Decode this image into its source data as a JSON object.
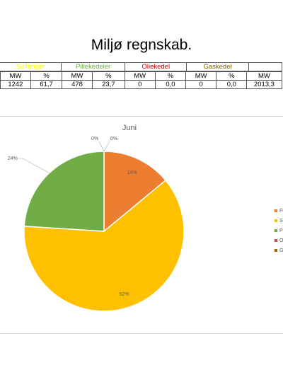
{
  "page_title": "Miljø regnskab.",
  "table": {
    "groups": [
      {
        "label": "Solfanger",
        "color": "#ffff00"
      },
      {
        "label": "Pillekedeler",
        "color": "#70ad47"
      },
      {
        "label": "Oliekedel",
        "color": "#c00000"
      },
      {
        "label": "Gaskedel",
        "color": "#7f6000"
      },
      {
        "label": "",
        "color": "#000000"
      }
    ],
    "subheaders": [
      "MW",
      "%",
      "MW",
      "%",
      "MW",
      "%",
      "MW",
      "%",
      "MW"
    ],
    "values": [
      "1242",
      "61,7",
      "478",
      "23,7",
      "0",
      "0,0",
      "0",
      "0,0",
      "2013,3"
    ]
  },
  "chart_data": {
    "type": "pie",
    "title": "Juni",
    "categories": [
      "Fl...",
      "So...",
      "Pil...",
      "Ol...",
      "Ga..."
    ],
    "values": [
      14,
      62,
      24,
      0,
      0
    ],
    "labels": [
      "14%",
      "62%",
      "24%",
      "0%",
      "0%"
    ],
    "colors": [
      "#ed7d31",
      "#ffc000",
      "#70ad47",
      "#c0504d",
      "#9c6500"
    ],
    "legend_position": "right"
  }
}
